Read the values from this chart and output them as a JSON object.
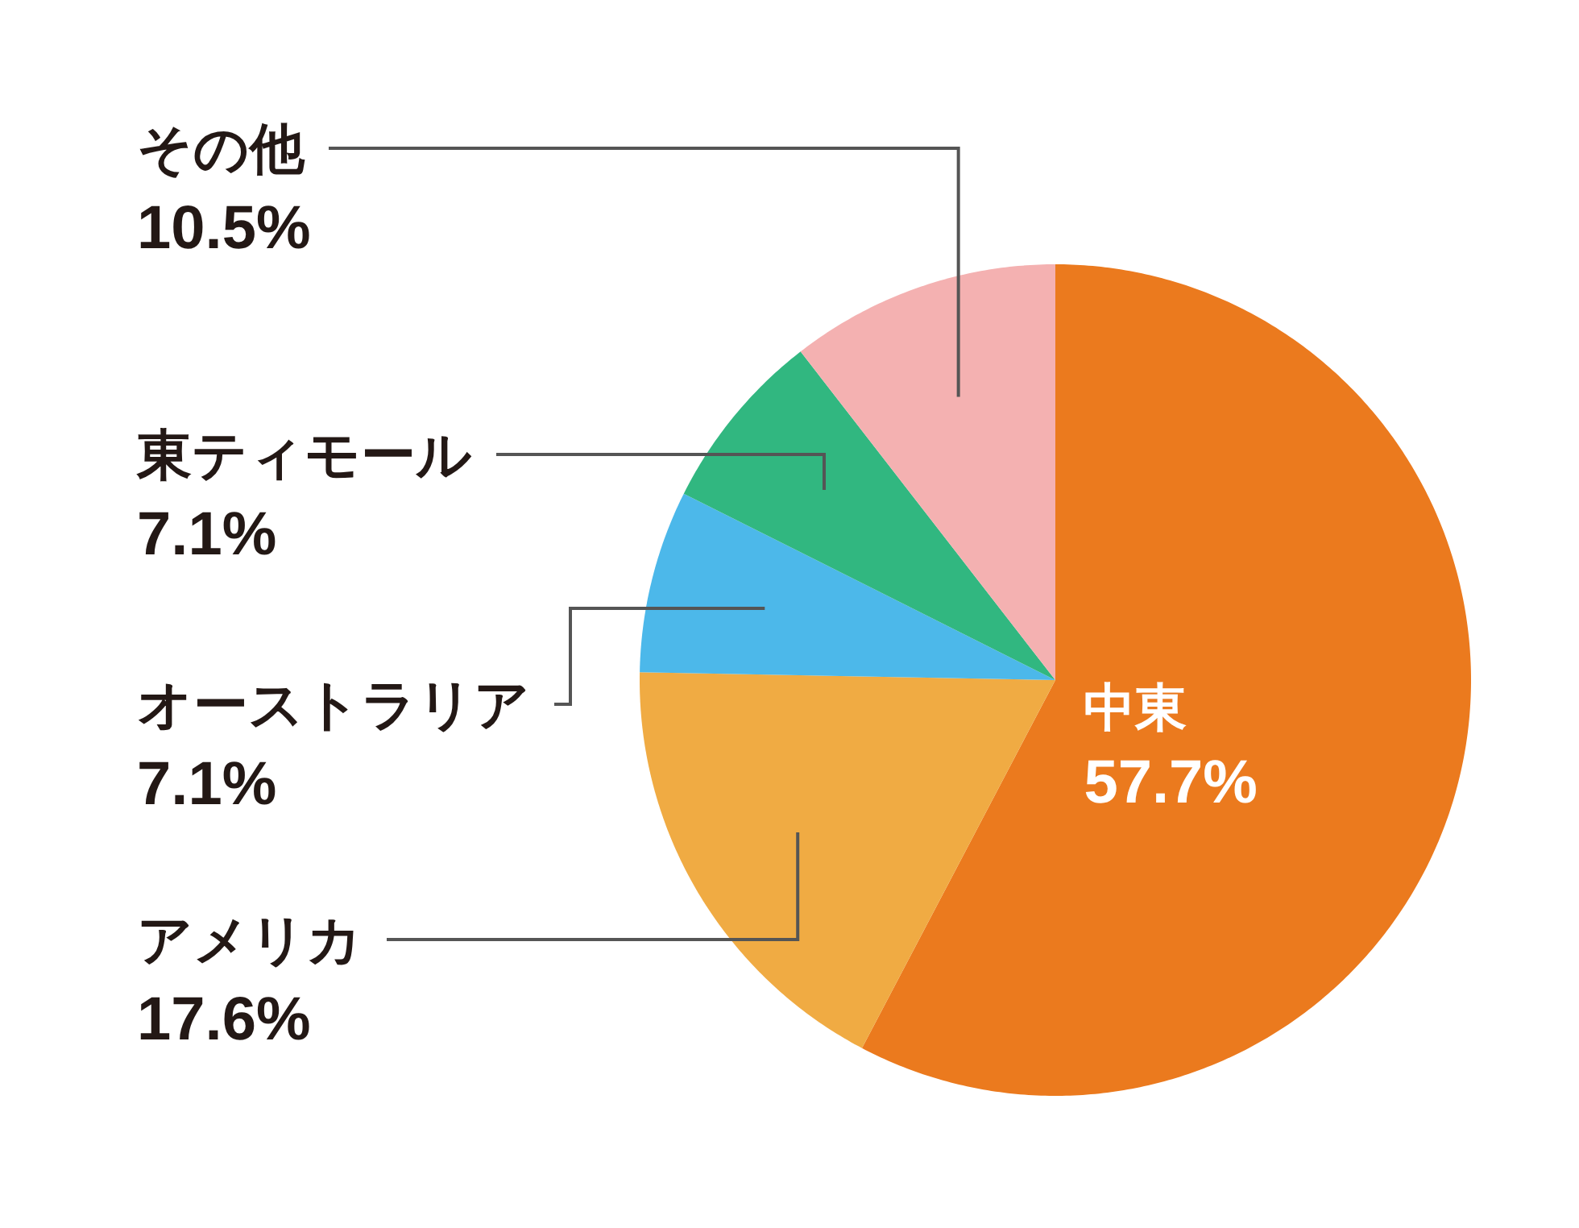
{
  "chart_data": {
    "type": "pie",
    "categories": [
      "中東",
      "アメリカ",
      "オーストラリア",
      "東ティモール",
      "その他"
    ],
    "values": [
      57.7,
      17.6,
      7.1,
      7.1,
      10.5
    ],
    "colors": [
      "#eb7a1e",
      "#f0ab43",
      "#4cb8ea",
      "#31b780",
      "#f4b1b1"
    ],
    "value_labels": [
      "57.7%",
      "17.6%",
      "7.1%",
      "7.1%",
      "10.5%"
    ]
  }
}
